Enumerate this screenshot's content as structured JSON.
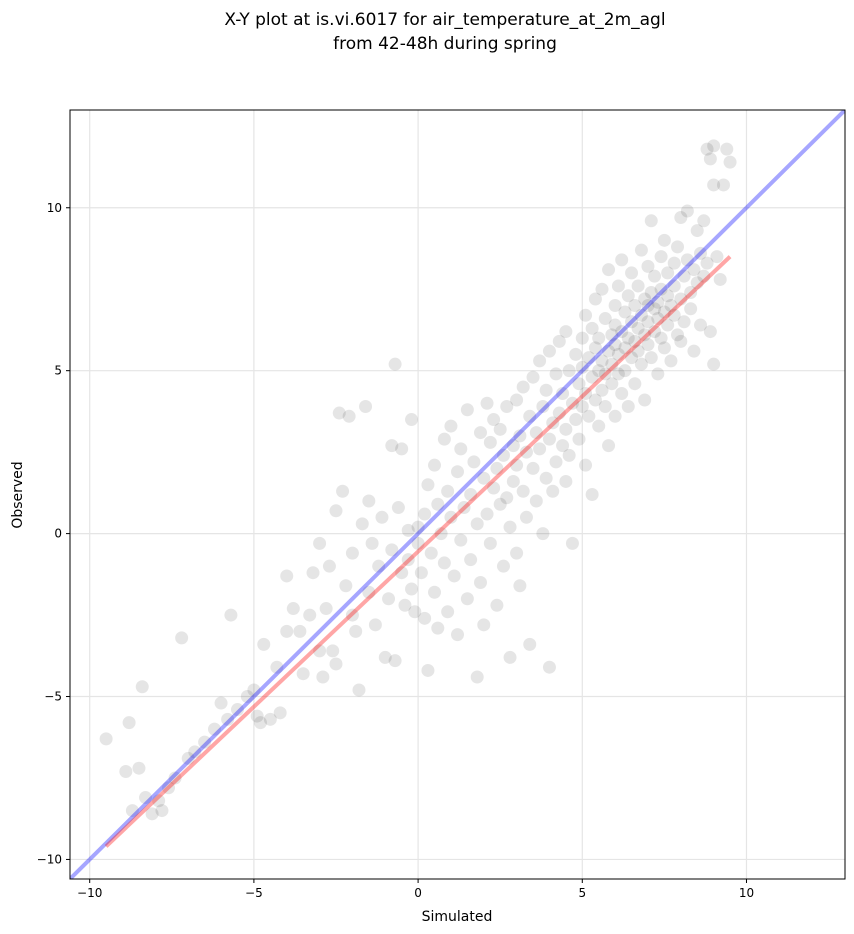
{
  "chart_data": {
    "type": "scatter",
    "title": "X-Y plot at is.vi.6017 for air_temperature_at_2m_agl",
    "subtitle": "from 42-48h during spring",
    "xlabel": "Simulated",
    "ylabel": "Observed",
    "xlim": [
      -10.6,
      13.0
    ],
    "ylim": [
      -10.6,
      13.0
    ],
    "xticks": [
      -10,
      -5,
      0,
      5,
      10
    ],
    "yticks": [
      -10,
      -5,
      0,
      5,
      10
    ],
    "xtick_labels": [
      "−10",
      "−5",
      "0",
      "5",
      "10"
    ],
    "ytick_labels": [
      "−10",
      "−5",
      "0",
      "5",
      "10"
    ],
    "grid": true,
    "point_color": "#000000",
    "point_alpha": 0.1,
    "series": [
      {
        "type": "scatter",
        "points": [
          [
            -9.5,
            -6.3
          ],
          [
            -8.9,
            -7.3
          ],
          [
            -8.8,
            -5.8
          ],
          [
            -8.5,
            -7.2
          ],
          [
            -8.7,
            -8.5
          ],
          [
            -8.4,
            -4.7
          ],
          [
            -8.3,
            -8.1
          ],
          [
            -8.1,
            -8.6
          ],
          [
            -7.9,
            -8.2
          ],
          [
            -7.8,
            -8.5
          ],
          [
            -7.6,
            -7.8
          ],
          [
            -7.4,
            -7.5
          ],
          [
            -7.2,
            -3.2
          ],
          [
            -7.0,
            -6.9
          ],
          [
            -6.8,
            -6.7
          ],
          [
            -6.5,
            -6.4
          ],
          [
            -6.2,
            -6.0
          ],
          [
            -6.0,
            -5.2
          ],
          [
            -5.8,
            -5.7
          ],
          [
            -5.7,
            -2.5
          ],
          [
            -5.5,
            -5.4
          ],
          [
            -5.2,
            -5.0
          ],
          [
            -5.0,
            -4.8
          ],
          [
            -4.9,
            -5.6
          ],
          [
            -4.8,
            -5.8
          ],
          [
            -4.7,
            -3.4
          ],
          [
            -4.5,
            -5.7
          ],
          [
            -4.3,
            -4.1
          ],
          [
            -4.2,
            -5.5
          ],
          [
            -4.0,
            -1.3
          ],
          [
            -4.0,
            -3.0
          ],
          [
            -3.8,
            -2.3
          ],
          [
            -3.6,
            -3.0
          ],
          [
            -3.5,
            -4.3
          ],
          [
            -3.3,
            -2.5
          ],
          [
            -3.2,
            -1.2
          ],
          [
            -3.0,
            -3.6
          ],
          [
            -3.0,
            -0.3
          ],
          [
            -2.9,
            -4.4
          ],
          [
            -2.8,
            -2.3
          ],
          [
            -2.7,
            -1.0
          ],
          [
            -2.6,
            -3.6
          ],
          [
            -2.5,
            -4.0
          ],
          [
            -2.5,
            0.7
          ],
          [
            -2.4,
            3.7
          ],
          [
            -2.3,
            1.3
          ],
          [
            -2.2,
            -1.6
          ],
          [
            -2.1,
            3.6
          ],
          [
            -2.0,
            -0.6
          ],
          [
            -2.0,
            -2.5
          ],
          [
            -1.9,
            -3.0
          ],
          [
            -1.8,
            -4.8
          ],
          [
            -1.7,
            0.3
          ],
          [
            -1.6,
            3.9
          ],
          [
            -1.5,
            -1.8
          ],
          [
            -1.5,
            1.0
          ],
          [
            -1.4,
            -0.3
          ],
          [
            -1.3,
            -2.8
          ],
          [
            -1.2,
            -1.0
          ],
          [
            -1.1,
            0.5
          ],
          [
            -1.0,
            -3.8
          ],
          [
            -0.9,
            -2.0
          ],
          [
            -0.8,
            -0.5
          ],
          [
            -0.8,
            2.7
          ],
          [
            -0.7,
            -3.9
          ],
          [
            -0.7,
            5.2
          ],
          [
            -0.6,
            0.8
          ],
          [
            -0.5,
            -1.2
          ],
          [
            -0.5,
            2.6
          ],
          [
            -0.4,
            -2.2
          ],
          [
            -0.3,
            0.1
          ],
          [
            -0.3,
            -0.8
          ],
          [
            -0.2,
            -1.7
          ],
          [
            -0.2,
            3.5
          ],
          [
            -0.1,
            -2.4
          ],
          [
            0.0,
            0.2
          ],
          [
            0.0,
            -0.3
          ],
          [
            0.1,
            -1.2
          ],
          [
            0.2,
            -2.6
          ],
          [
            0.2,
            0.6
          ],
          [
            0.3,
            -4.2
          ],
          [
            0.3,
            1.5
          ],
          [
            0.4,
            -0.6
          ],
          [
            0.5,
            -1.8
          ],
          [
            0.5,
            2.1
          ],
          [
            0.6,
            0.9
          ],
          [
            0.6,
            -2.9
          ],
          [
            0.7,
            0.0
          ],
          [
            0.8,
            2.9
          ],
          [
            0.8,
            -0.9
          ],
          [
            0.9,
            1.3
          ],
          [
            0.9,
            -2.4
          ],
          [
            1.0,
            0.5
          ],
          [
            1.0,
            3.3
          ],
          [
            1.1,
            -1.3
          ],
          [
            1.2,
            1.9
          ],
          [
            1.2,
            -3.1
          ],
          [
            1.3,
            -0.2
          ],
          [
            1.3,
            2.6
          ],
          [
            1.4,
            0.8
          ],
          [
            1.5,
            -2.0
          ],
          [
            1.5,
            3.8
          ],
          [
            1.6,
            1.2
          ],
          [
            1.6,
            -0.8
          ],
          [
            1.7,
            2.2
          ],
          [
            1.8,
            -4.4
          ],
          [
            1.8,
            0.3
          ],
          [
            1.9,
            3.1
          ],
          [
            1.9,
            -1.5
          ],
          [
            2.0,
            1.7
          ],
          [
            2.0,
            -2.8
          ],
          [
            2.1,
            4.0
          ],
          [
            2.1,
            0.6
          ],
          [
            2.2,
            2.8
          ],
          [
            2.2,
            -0.3
          ],
          [
            2.3,
            1.4
          ],
          [
            2.3,
            3.5
          ],
          [
            2.4,
            -2.2
          ],
          [
            2.4,
            2.0
          ],
          [
            2.5,
            0.9
          ],
          [
            2.5,
            3.2
          ],
          [
            2.6,
            -1.0
          ],
          [
            2.6,
            2.4
          ],
          [
            2.7,
            1.1
          ],
          [
            2.7,
            3.9
          ],
          [
            2.8,
            -3.8
          ],
          [
            2.8,
            0.2
          ],
          [
            2.9,
            2.7
          ],
          [
            2.9,
            1.6
          ],
          [
            3.0,
            4.1
          ],
          [
            3.0,
            -0.6
          ],
          [
            3.0,
            2.1
          ],
          [
            3.1,
            3.0
          ],
          [
            3.1,
            -1.6
          ],
          [
            3.2,
            1.3
          ],
          [
            3.2,
            4.5
          ],
          [
            3.3,
            2.5
          ],
          [
            3.3,
            0.5
          ],
          [
            3.4,
            3.6
          ],
          [
            3.4,
            -3.4
          ],
          [
            3.5,
            2.0
          ],
          [
            3.5,
            4.8
          ],
          [
            3.6,
            1.0
          ],
          [
            3.6,
            3.1
          ],
          [
            3.7,
            2.6
          ],
          [
            3.7,
            5.3
          ],
          [
            3.8,
            0.0
          ],
          [
            3.8,
            3.9
          ],
          [
            3.9,
            1.7
          ],
          [
            3.9,
            4.4
          ],
          [
            4.0,
            2.9
          ],
          [
            4.0,
            -4.1
          ],
          [
            4.0,
            5.6
          ],
          [
            4.1,
            3.4
          ],
          [
            4.1,
            1.3
          ],
          [
            4.2,
            4.9
          ],
          [
            4.2,
            2.2
          ],
          [
            4.3,
            3.7
          ],
          [
            4.3,
            5.9
          ],
          [
            4.4,
            2.7
          ],
          [
            4.4,
            4.3
          ],
          [
            4.5,
            1.6
          ],
          [
            4.5,
            3.2
          ],
          [
            4.5,
            6.2
          ],
          [
            4.6,
            5.0
          ],
          [
            4.6,
            2.4
          ],
          [
            4.7,
            4.0
          ],
          [
            4.7,
            -0.3
          ],
          [
            4.8,
            3.5
          ],
          [
            4.8,
            5.5
          ],
          [
            4.9,
            4.6
          ],
          [
            4.9,
            2.9
          ],
          [
            5.0,
            6.0
          ],
          [
            5.0,
            3.9
          ],
          [
            5.0,
            5.1
          ],
          [
            5.1,
            4.3
          ],
          [
            5.1,
            6.7
          ],
          [
            5.1,
            2.1
          ],
          [
            5.2,
            5.4
          ],
          [
            5.2,
            3.6
          ],
          [
            5.3,
            4.8
          ],
          [
            5.3,
            6.3
          ],
          [
            5.3,
            1.2
          ],
          [
            5.4,
            4.1
          ],
          [
            5.4,
            5.7
          ],
          [
            5.4,
            7.2
          ],
          [
            5.5,
            3.3
          ],
          [
            5.5,
            5.0
          ],
          [
            5.5,
            6.0
          ],
          [
            5.6,
            4.4
          ],
          [
            5.6,
            5.3
          ],
          [
            5.6,
            7.5
          ],
          [
            5.7,
            3.9
          ],
          [
            5.7,
            6.6
          ],
          [
            5.7,
            4.9
          ],
          [
            5.8,
            5.6
          ],
          [
            5.8,
            8.1
          ],
          [
            5.8,
            2.7
          ],
          [
            5.9,
            6.1
          ],
          [
            5.9,
            4.6
          ],
          [
            5.9,
            5.2
          ],
          [
            6.0,
            7.0
          ],
          [
            6.0,
            3.6
          ],
          [
            6.0,
            5.8
          ],
          [
            6.0,
            6.4
          ],
          [
            6.1,
            4.9
          ],
          [
            6.1,
            7.6
          ],
          [
            6.1,
            5.5
          ],
          [
            6.2,
            6.2
          ],
          [
            6.2,
            4.3
          ],
          [
            6.2,
            8.4
          ],
          [
            6.3,
            5.7
          ],
          [
            6.3,
            6.8
          ],
          [
            6.3,
            5.0
          ],
          [
            6.4,
            7.3
          ],
          [
            6.4,
            6.0
          ],
          [
            6.4,
            3.9
          ],
          [
            6.5,
            6.5
          ],
          [
            6.5,
            5.4
          ],
          [
            6.5,
            8.0
          ],
          [
            6.6,
            7.0
          ],
          [
            6.6,
            5.9
          ],
          [
            6.6,
            4.6
          ],
          [
            6.7,
            6.3
          ],
          [
            6.7,
            7.6
          ],
          [
            6.7,
            5.6
          ],
          [
            6.8,
            8.7
          ],
          [
            6.8,
            6.7
          ],
          [
            6.8,
            5.2
          ],
          [
            6.9,
            7.2
          ],
          [
            6.9,
            6.1
          ],
          [
            6.9,
            4.1
          ],
          [
            7.0,
            7.0
          ],
          [
            7.0,
            5.8
          ],
          [
            7.0,
            8.2
          ],
          [
            7.0,
            6.5
          ],
          [
            7.1,
            7.4
          ],
          [
            7.1,
            5.4
          ],
          [
            7.1,
            9.6
          ],
          [
            7.2,
            6.9
          ],
          [
            7.2,
            6.2
          ],
          [
            7.2,
            7.9
          ],
          [
            7.3,
            6.6
          ],
          [
            7.3,
            4.9
          ],
          [
            7.3,
            7.1
          ],
          [
            7.4,
            8.5
          ],
          [
            7.4,
            6.0
          ],
          [
            7.4,
            7.5
          ],
          [
            7.5,
            6.8
          ],
          [
            7.5,
            5.7
          ],
          [
            7.5,
            9.0
          ],
          [
            7.6,
            7.3
          ],
          [
            7.6,
            6.4
          ],
          [
            7.6,
            8.0
          ],
          [
            7.7,
            7.0
          ],
          [
            7.7,
            5.3
          ],
          [
            7.8,
            8.3
          ],
          [
            7.8,
            6.7
          ],
          [
            7.8,
            7.6
          ],
          [
            7.9,
            6.1
          ],
          [
            7.9,
            8.8
          ],
          [
            8.0,
            7.2
          ],
          [
            8.0,
            9.7
          ],
          [
            8.0,
            5.9
          ],
          [
            8.1,
            7.9
          ],
          [
            8.1,
            6.5
          ],
          [
            8.2,
            8.4
          ],
          [
            8.2,
            9.9
          ],
          [
            8.3,
            7.4
          ],
          [
            8.3,
            6.9
          ],
          [
            8.4,
            8.1
          ],
          [
            8.4,
            5.6
          ],
          [
            8.5,
            9.3
          ],
          [
            8.5,
            7.7
          ],
          [
            8.6,
            8.6
          ],
          [
            8.6,
            6.4
          ],
          [
            8.7,
            9.6
          ],
          [
            8.7,
            7.9
          ],
          [
            8.8,
            11.8
          ],
          [
            8.8,
            8.3
          ],
          [
            8.9,
            6.2
          ],
          [
            8.9,
            11.5
          ],
          [
            9.0,
            11.9
          ],
          [
            9.0,
            5.2
          ],
          [
            9.0,
            10.7
          ],
          [
            9.1,
            8.5
          ],
          [
            9.2,
            7.8
          ],
          [
            9.3,
            10.7
          ],
          [
            9.4,
            11.8
          ],
          [
            9.5,
            11.4
          ]
        ]
      }
    ],
    "reference_lines": [
      {
        "name": "",
        "color": "#0000ff",
        "alpha": 0.35,
        "from": [
          -10.6,
          -10.6
        ],
        "to": [
          13.0,
          13.0
        ]
      },
      {
        "name": "",
        "color": "#ff0000",
        "alpha": 0.35,
        "from": [
          -9.5,
          -9.6
        ],
        "to": [
          9.5,
          8.5
        ]
      }
    ]
  }
}
